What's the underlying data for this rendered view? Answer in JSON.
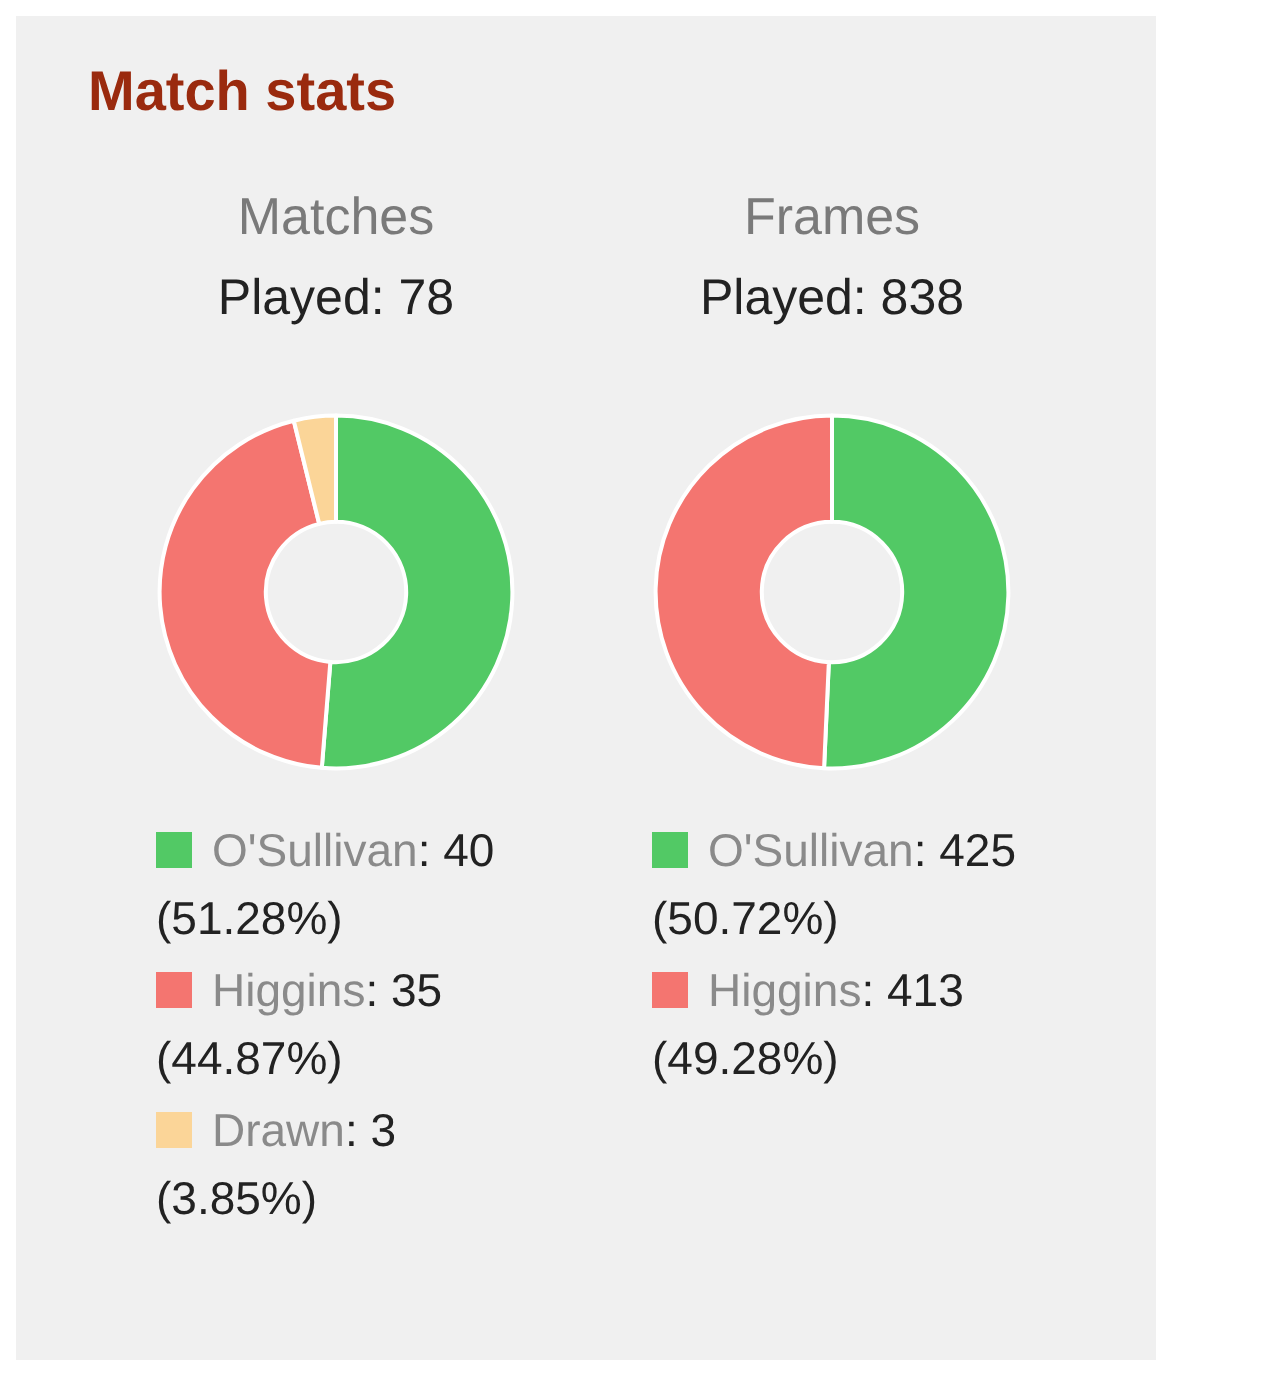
{
  "chart_data": [
    {
      "type": "donut",
      "title": "Matches",
      "subtitle": "Played: 78",
      "annotations": [
        "Match stats"
      ],
      "categories": [
        "O'Sullivan",
        "Higgins",
        "Drawn"
      ],
      "values": [
        40,
        35,
        3
      ],
      "colors": [
        "#52c965",
        "#f47570",
        "#fbd598"
      ],
      "value_labels": [
        ": 40 (51.28%)",
        ": 35 (44.87%)",
        ": 3 (3.85%)"
      ],
      "legend": "bottom"
    },
    {
      "type": "donut",
      "title": "Frames",
      "subtitle": "Played: 838",
      "categories": [
        "O'Sullivan",
        "Higgins"
      ],
      "values": [
        425,
        413
      ],
      "colors": [
        "#52c965",
        "#f47570"
      ],
      "value_labels": [
        ": 425 (50.72%)",
        ": 413 (49.28%)"
      ],
      "legend": "bottom"
    }
  ]
}
